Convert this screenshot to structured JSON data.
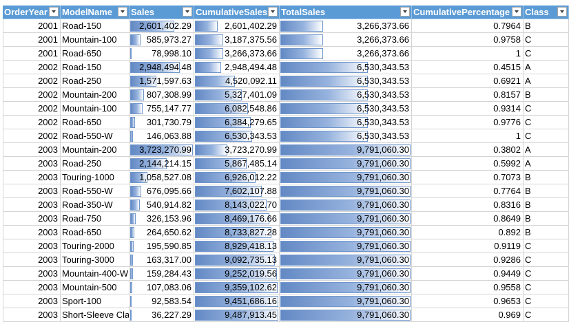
{
  "headers": [
    "OrderYear",
    "ModelName",
    "Sales",
    "CumulativeSales",
    "TotalSales",
    "CumulativePercentage",
    "Class"
  ],
  "rows": [
    {
      "year": "2001",
      "model": "Road-150",
      "sales": "2,601,402.29",
      "sales_frac": 0.7,
      "cum": "2,601,402.29",
      "cum_frac": 0.27,
      "total": "3,266,373.66",
      "total_frac": 0.33,
      "pct": "0.7964",
      "cls": "B"
    },
    {
      "year": "2001",
      "model": "Mountain-100",
      "sales": "585,973.27",
      "sales_frac": 0.16,
      "cum": "3,187,375.56",
      "cum_frac": 0.34,
      "total": "3,266,373.66",
      "total_frac": 0.33,
      "pct": "0.9758",
      "cls": "C"
    },
    {
      "year": "2001",
      "model": "Road-650",
      "sales": "78,998.10",
      "sales_frac": 0.02,
      "cum": "3,266,373.66",
      "cum_frac": 0.34,
      "total": "3,266,373.66",
      "total_frac": 0.33,
      "pct": "1",
      "cls": "C"
    },
    {
      "year": "2002",
      "model": "Road-150",
      "sales": "2,948,494.48",
      "sales_frac": 0.79,
      "cum": "2,948,494.48",
      "cum_frac": 0.31,
      "total": "6,530,343.53",
      "total_frac": 0.67,
      "pct": "0.4515",
      "cls": "A"
    },
    {
      "year": "2002",
      "model": "Road-250",
      "sales": "1,571,597.63",
      "sales_frac": 0.42,
      "cum": "4,520,092.11",
      "cum_frac": 0.48,
      "total": "6,530,343.53",
      "total_frac": 0.67,
      "pct": "0.6921",
      "cls": "A"
    },
    {
      "year": "2002",
      "model": "Mountain-200",
      "sales": "807,308.99",
      "sales_frac": 0.22,
      "cum": "5,327,401.09",
      "cum_frac": 0.56,
      "total": "6,530,343.53",
      "total_frac": 0.67,
      "pct": "0.8157",
      "cls": "B"
    },
    {
      "year": "2002",
      "model": "Mountain-100",
      "sales": "755,147.77",
      "sales_frac": 0.2,
      "cum": "6,082,548.86",
      "cum_frac": 0.64,
      "total": "6,530,343.53",
      "total_frac": 0.67,
      "pct": "0.9314",
      "cls": "C"
    },
    {
      "year": "2002",
      "model": "Road-650",
      "sales": "301,730.79",
      "sales_frac": 0.08,
      "cum": "6,384,279.65",
      "cum_frac": 0.67,
      "total": "6,530,343.53",
      "total_frac": 0.67,
      "pct": "0.9776",
      "cls": "C"
    },
    {
      "year": "2002",
      "model": "Road-550-W",
      "sales": "146,063.88",
      "sales_frac": 0.04,
      "cum": "6,530,343.53",
      "cum_frac": 0.69,
      "total": "6,530,343.53",
      "total_frac": 0.67,
      "pct": "1",
      "cls": "C"
    },
    {
      "year": "2003",
      "model": "Mountain-200",
      "sales": "3,723,270.99",
      "sales_frac": 1.0,
      "cum": "3,723,270.99",
      "cum_frac": 0.39,
      "total": "9,791,060.30",
      "total_frac": 1.0,
      "pct": "0.3802",
      "cls": "A"
    },
    {
      "year": "2003",
      "model": "Road-250",
      "sales": "2,144,214.15",
      "sales_frac": 0.58,
      "cum": "5,867,485.14",
      "cum_frac": 0.62,
      "total": "9,791,060.30",
      "total_frac": 1.0,
      "pct": "0.5992",
      "cls": "A"
    },
    {
      "year": "2003",
      "model": "Touring-1000",
      "sales": "1,058,527.08",
      "sales_frac": 0.28,
      "cum": "6,926,012.22",
      "cum_frac": 0.73,
      "total": "9,791,060.30",
      "total_frac": 1.0,
      "pct": "0.7073",
      "cls": "B"
    },
    {
      "year": "2003",
      "model": "Road-550-W",
      "sales": "676,095.66",
      "sales_frac": 0.18,
      "cum": "7,602,107.88",
      "cum_frac": 0.8,
      "total": "9,791,060.30",
      "total_frac": 1.0,
      "pct": "0.7764",
      "cls": "B"
    },
    {
      "year": "2003",
      "model": "Road-350-W",
      "sales": "540,914.82",
      "sales_frac": 0.15,
      "cum": "8,143,022.70",
      "cum_frac": 0.86,
      "total": "9,791,060.30",
      "total_frac": 1.0,
      "pct": "0.8316",
      "cls": "B"
    },
    {
      "year": "2003",
      "model": "Road-750",
      "sales": "326,153.96",
      "sales_frac": 0.09,
      "cum": "8,469,176.66",
      "cum_frac": 0.89,
      "total": "9,791,060.30",
      "total_frac": 1.0,
      "pct": "0.8649",
      "cls": "B"
    },
    {
      "year": "2003",
      "model": "Road-650",
      "sales": "264,650.62",
      "sales_frac": 0.07,
      "cum": "8,733,827.28",
      "cum_frac": 0.92,
      "total": "9,791,060.30",
      "total_frac": 1.0,
      "pct": "0.892",
      "cls": "B"
    },
    {
      "year": "2003",
      "model": "Touring-2000",
      "sales": "195,590.85",
      "sales_frac": 0.05,
      "cum": "8,929,418.13",
      "cum_frac": 0.94,
      "total": "9,791,060.30",
      "total_frac": 1.0,
      "pct": "0.9119",
      "cls": "C"
    },
    {
      "year": "2003",
      "model": "Touring-3000",
      "sales": "163,317.00",
      "sales_frac": 0.04,
      "cum": "9,092,735.13",
      "cum_frac": 0.96,
      "total": "9,791,060.30",
      "total_frac": 1.0,
      "pct": "0.9286",
      "cls": "C"
    },
    {
      "year": "2003",
      "model": "Mountain-400-W",
      "sales": "159,284.43",
      "sales_frac": 0.04,
      "cum": "9,252,019.56",
      "cum_frac": 0.98,
      "total": "9,791,060.30",
      "total_frac": 1.0,
      "pct": "0.9449",
      "cls": "C"
    },
    {
      "year": "2003",
      "model": "Mountain-500",
      "sales": "107,083.06",
      "sales_frac": 0.03,
      "cum": "9,359,102.62",
      "cum_frac": 0.99,
      "total": "9,791,060.30",
      "total_frac": 1.0,
      "pct": "0.9558",
      "cls": "C"
    },
    {
      "year": "2003",
      "model": "Sport-100",
      "sales": "92,583.54",
      "sales_frac": 0.02,
      "cum": "9,451,686.16",
      "cum_frac": 1.0,
      "total": "9,791,060.30",
      "total_frac": 1.0,
      "pct": "0.9653",
      "cls": "C"
    },
    {
      "year": "2003",
      "model": "Short-Sleeve Classic Jersey",
      "sales": "36,227.29",
      "sales_frac": 0.01,
      "cum": "9,487,913.45",
      "cum_frac": 1.0,
      "total": "9,791,060.30",
      "total_frac": 1.0,
      "pct": "0.969",
      "cls": "C"
    }
  ],
  "colors": {
    "header_bg": "#5b9bd5",
    "header_text": "#ffffff",
    "databar": "#638ec6",
    "gridline": "#d4d4d4"
  },
  "icons": {
    "filter": "filter-dropdown-icon"
  }
}
